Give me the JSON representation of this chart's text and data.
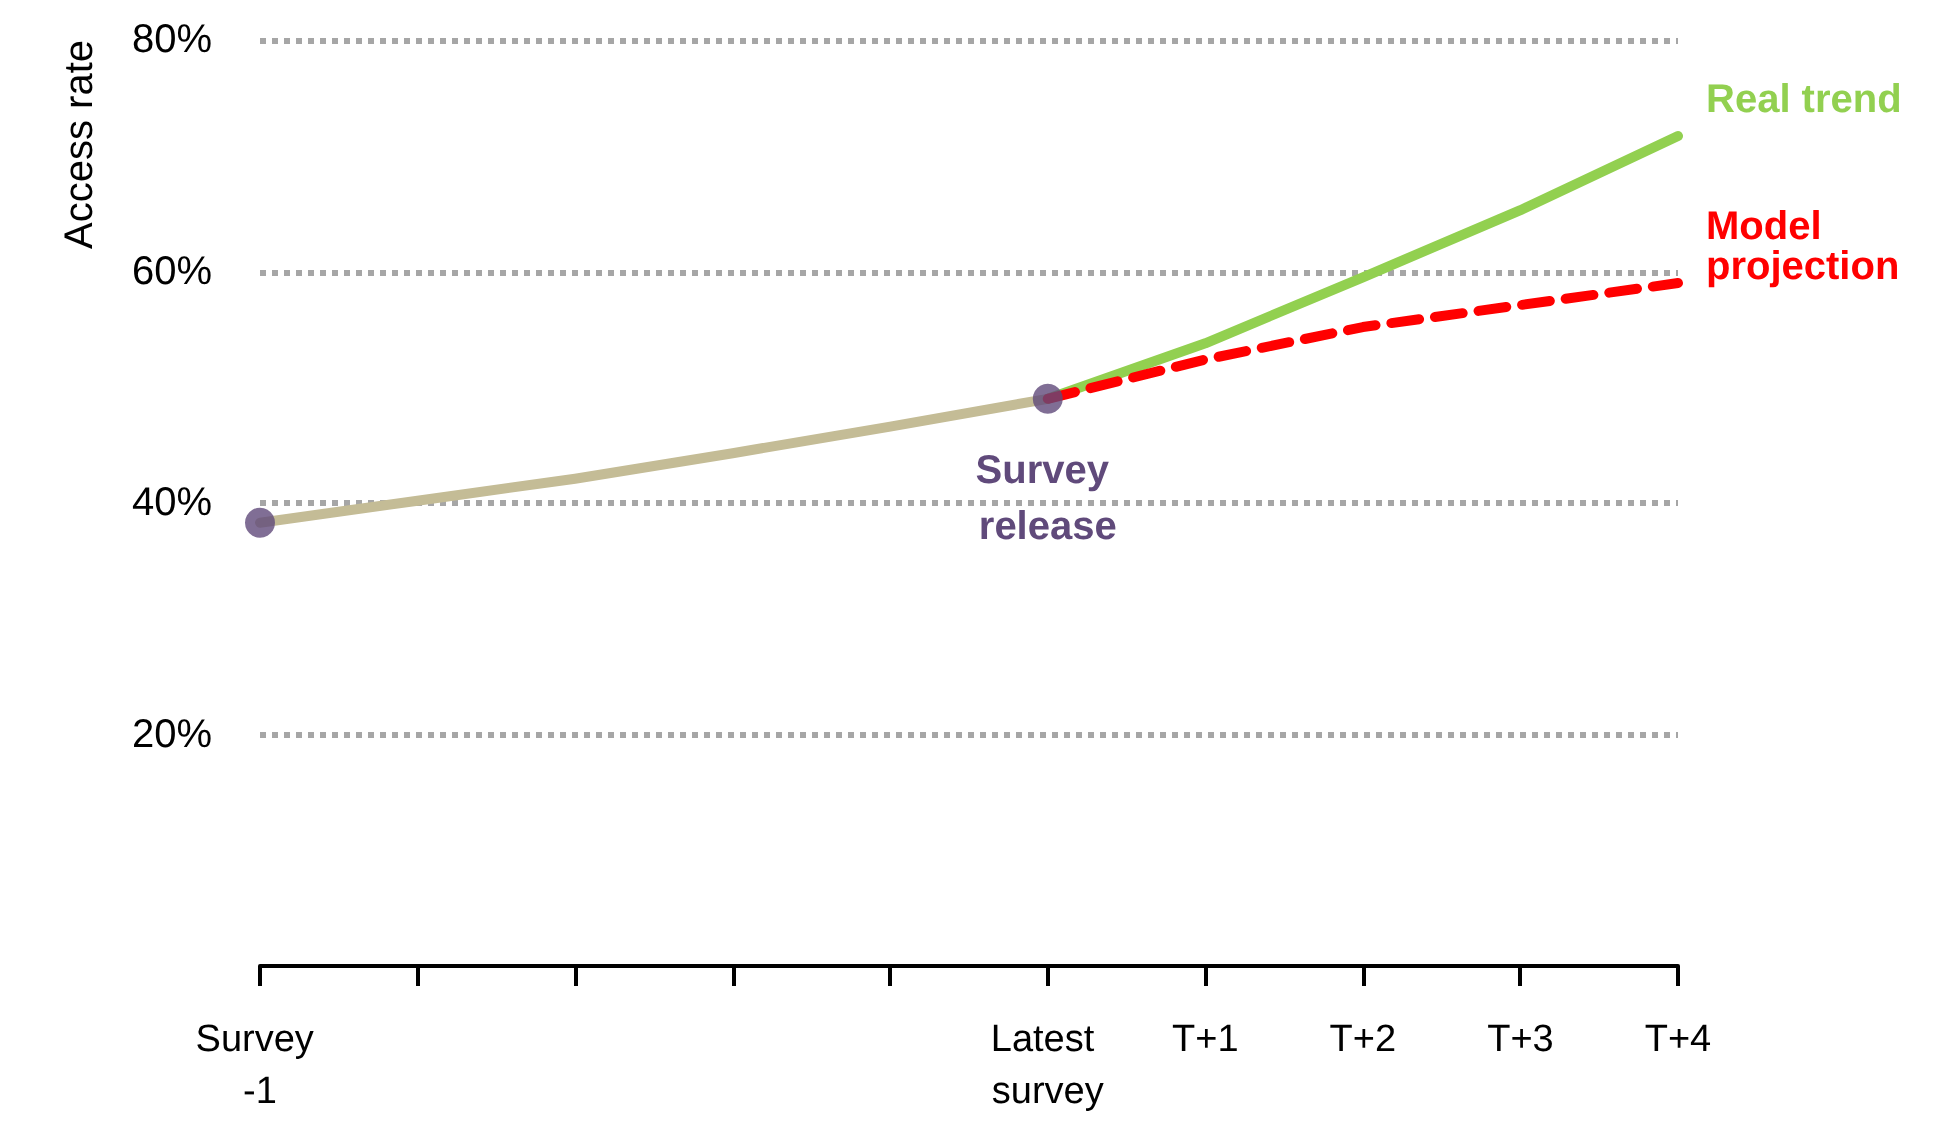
{
  "chart_data": {
    "type": "line",
    "ylabel": "Access rate",
    "categories": [
      "Survey -1",
      null,
      null,
      null,
      null,
      "Latest survey",
      "T+1",
      "T+2",
      "T+3",
      "T+4"
    ],
    "ylim": [
      0,
      80
    ],
    "yticks": [
      {
        "value": 20,
        "label": "20%"
      },
      {
        "value": 40,
        "label": "40%"
      },
      {
        "value": 60,
        "label": "60%"
      },
      {
        "value": 80,
        "label": "80%"
      }
    ],
    "grid": "y",
    "series": [
      {
        "color": "#c4bc96",
        "marker": "none",
        "line_style": "solid",
        "values": [
          38.3,
          40.2,
          42.1,
          44.3,
          46.6,
          49.0,
          null,
          null,
          null,
          null
        ]
      },
      {
        "name": "Real trend",
        "color": "#92d050",
        "marker": "none",
        "line_style": "solid",
        "values": [
          null,
          null,
          null,
          null,
          null,
          49.0,
          53.8,
          59.5,
          65.3,
          71.7
        ]
      },
      {
        "name": "Model projection",
        "color": "#ff0000",
        "marker": "none",
        "line_style": "dashed",
        "values": [
          null,
          null,
          null,
          null,
          null,
          49.0,
          52.4,
          55.2,
          57.1,
          59.0
        ]
      },
      {
        "type": "scatter",
        "color": "#604a7b",
        "marker": "circle",
        "x": [
          "Survey -1",
          "Latest survey"
        ],
        "values": [
          38.3,
          49.0
        ]
      }
    ],
    "annotations": [
      {
        "text": "Survey release",
        "x": "Latest survey",
        "y": 49.0
      }
    ]
  }
}
